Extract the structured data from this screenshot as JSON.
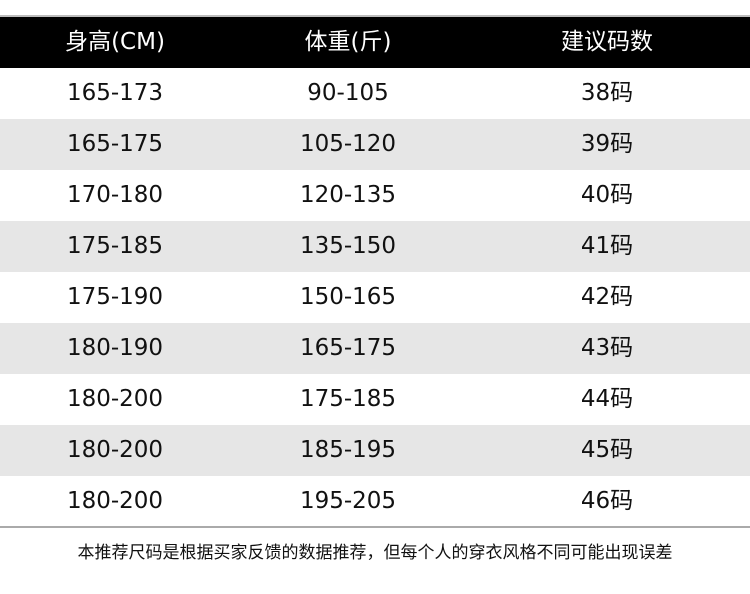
{
  "table": {
    "headers": [
      "身高(CM)",
      "体重(斤)",
      "建议码数"
    ],
    "rows": [
      [
        "165-173",
        "90-105",
        "38码"
      ],
      [
        "165-175",
        "105-120",
        "39码"
      ],
      [
        "170-180",
        "120-135",
        "40码"
      ],
      [
        "175-185",
        "135-150",
        "41码"
      ],
      [
        "175-190",
        "150-165",
        "42码"
      ],
      [
        "180-190",
        "165-175",
        "43码"
      ],
      [
        "180-200",
        "175-185",
        "44码"
      ],
      [
        "180-200",
        "185-195",
        "45码"
      ],
      [
        "180-200",
        "195-205",
        "46码"
      ]
    ]
  },
  "note": "本推荐尺码是根据买家反馈的数据推荐，但每个人的穿衣风格不同可能出现误差",
  "colors": {
    "header_bg": "#000000",
    "header_text": "#ffffff",
    "alt_row_bg": "#e6e6e6"
  }
}
